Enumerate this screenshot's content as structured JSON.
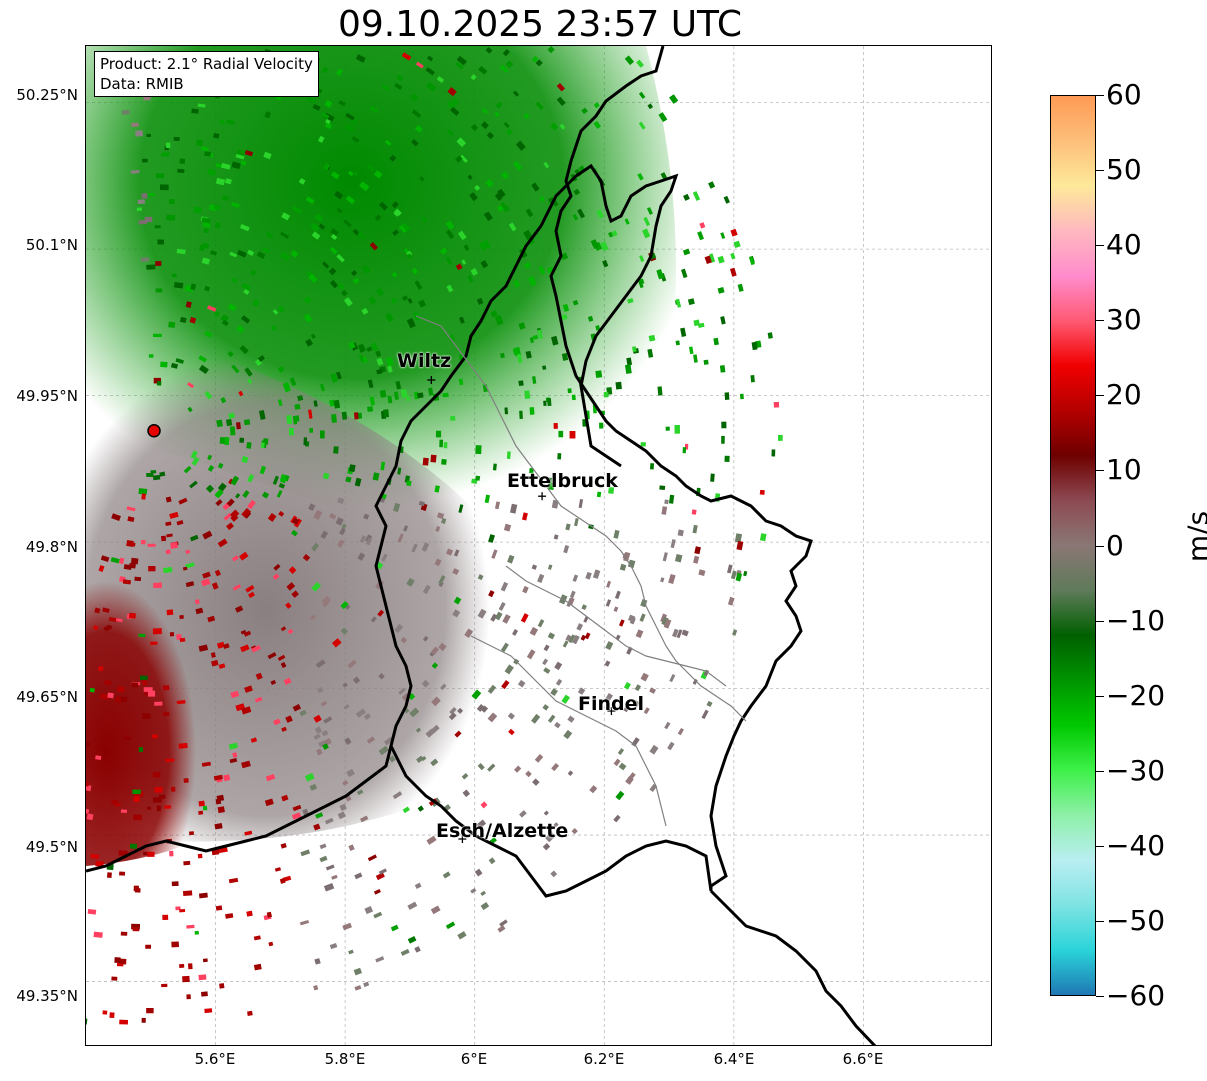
{
  "title": "09.10.2025 23:57 UTC",
  "info": {
    "product": "Product: 2.1° Radial Velocity",
    "source": "Data: RMIB"
  },
  "axes": {
    "lat_labels": [
      "50.25°N",
      "50.1°N",
      "49.95°N",
      "49.8°N",
      "49.65°N",
      "49.5°N",
      "49.35°N"
    ],
    "lon_labels": [
      "5.6°E",
      "5.8°E",
      "6°E",
      "6.2°E",
      "6.4°E",
      "6.6°E"
    ]
  },
  "cities": [
    {
      "name": "Wiltz",
      "lat": 49.966,
      "lon": 5.933
    },
    {
      "name": "Ettelbruck",
      "lat": 49.847,
      "lon": 6.104
    },
    {
      "name": "Findel",
      "lat": 49.627,
      "lon": 6.211
    },
    {
      "name": "Esch/Alzette",
      "lat": 49.496,
      "lon": 5.981
    }
  ],
  "radar_site": {
    "lat": 49.914,
    "lon": 5.505,
    "color": "#e60000"
  },
  "colorbar": {
    "label": "m/s",
    "ticks": [
      "60",
      "50",
      "40",
      "30",
      "20",
      "10",
      "0",
      "−10",
      "−20",
      "−30",
      "−40",
      "−50",
      "−60"
    ],
    "range": [
      -60,
      60
    ],
    "colors": [
      "#1f78b4",
      "#2ad4d9",
      "#7fe3e3",
      "#b9eef2",
      "#8ef0a8",
      "#3ef04a",
      "#00c800",
      "#009400",
      "#006000",
      "#5f7a5a",
      "#8a7775",
      "#8c4a52",
      "#6e0000",
      "#b40000",
      "#f00000",
      "#ff5a73",
      "#ff8ccc",
      "#ffb8bf",
      "#fde99a",
      "#fdbf7a",
      "#fd9a55"
    ]
  }
}
